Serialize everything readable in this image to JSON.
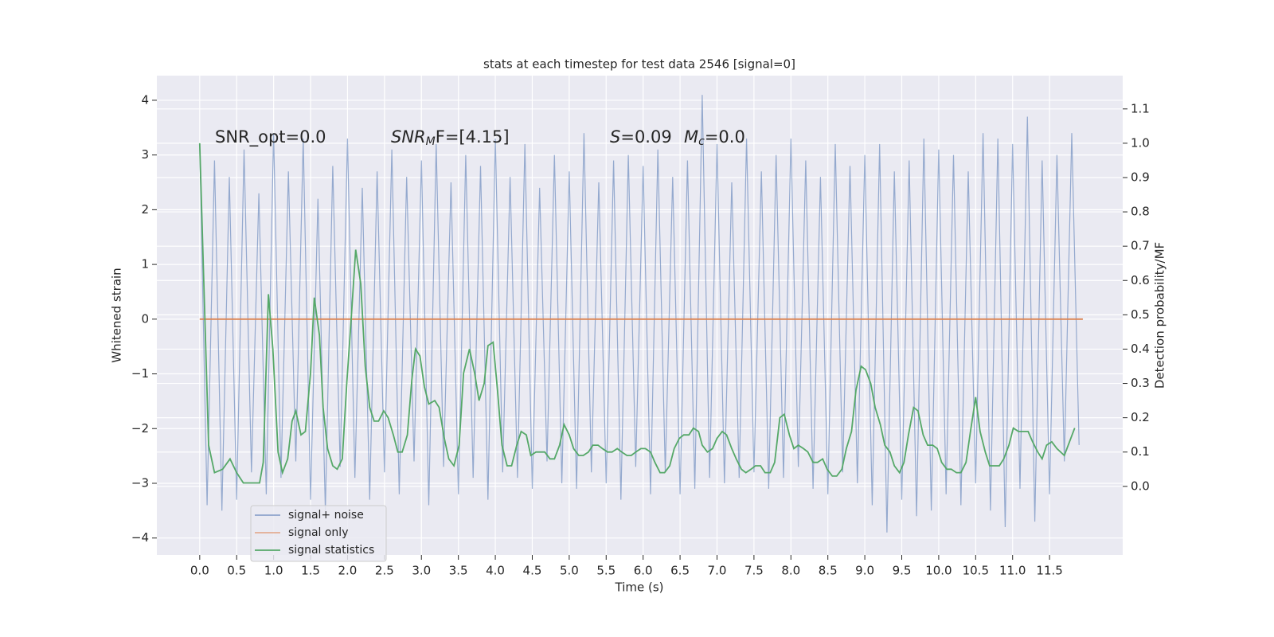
{
  "chart_data": {
    "type": "line",
    "title": "stats at each timestep for test data 2546 [signal=0]",
    "xlabel": "Time (s)",
    "ylabel": "Whitened strain",
    "y2label": "Detection probability/MF",
    "annotations": [
      [
        {
          "text": "SNR_opt=0.0"
        }
      ],
      [
        {
          "text": "SNR",
          "italic": true
        },
        {
          "text": "M",
          "italic": true,
          "sub": true
        },
        {
          "text": "F=[4.15]"
        }
      ],
      [
        {
          "text": "S",
          "italic": true
        },
        {
          "text": "=0.09"
        }
      ],
      [
        {
          "text": "M",
          "italic": true
        },
        {
          "text": "c",
          "italic": true,
          "sub": true
        },
        {
          "text": "=0.0"
        }
      ]
    ],
    "xlim": [
      -0.58,
      12.49
    ],
    "ylim": [
      -4.31,
      4.45
    ],
    "y2lim": [
      -0.2,
      1.197
    ],
    "xticks": [
      {
        "value": 0,
        "label": "0.0"
      },
      {
        "value": 0.5,
        "label": "0.5"
      },
      {
        "value": 1,
        "label": "1.0"
      },
      {
        "value": 1.5,
        "label": "1.5"
      },
      {
        "value": 2,
        "label": "2.0"
      },
      {
        "value": 2.5,
        "label": "2.5"
      },
      {
        "value": 3,
        "label": "3.0"
      },
      {
        "value": 3.5,
        "label": "3.5"
      },
      {
        "value": 4,
        "label": "4.0"
      },
      {
        "value": 4.5,
        "label": "4.5"
      },
      {
        "value": 5,
        "label": "5.0"
      },
      {
        "value": 5.5,
        "label": "5.5"
      },
      {
        "value": 6,
        "label": "6.0"
      },
      {
        "value": 6.5,
        "label": "6.5"
      },
      {
        "value": 7,
        "label": "7.0"
      },
      {
        "value": 7.5,
        "label": "7.5"
      },
      {
        "value": 8,
        "label": "8.0"
      },
      {
        "value": 8.5,
        "label": "8.5"
      },
      {
        "value": 9,
        "label": "9.0"
      },
      {
        "value": 9.5,
        "label": "9.5"
      },
      {
        "value": 10,
        "label": "10.0"
      },
      {
        "value": 10.5,
        "label": "10.5"
      },
      {
        "value": 11,
        "label": "11.0"
      },
      {
        "value": 11.5,
        "label": "11.5"
      }
    ],
    "yticks": [
      {
        "value": -4,
        "label": "−4"
      },
      {
        "value": -3,
        "label": "−3"
      },
      {
        "value": -2,
        "label": "−2"
      },
      {
        "value": -1,
        "label": "−1"
      },
      0,
      1,
      2,
      3,
      4
    ],
    "y2ticks": [
      {
        "value": 0,
        "label": "0.0"
      },
      {
        "value": 0.1,
        "label": "0.1"
      },
      {
        "value": 0.2,
        "label": "0.2"
      },
      {
        "value": 0.3,
        "label": "0.3"
      },
      {
        "value": 0.4,
        "label": "0.4"
      },
      {
        "value": 0.5,
        "label": "0.5"
      },
      {
        "value": 0.6,
        "label": "0.6"
      },
      {
        "value": 0.7,
        "label": "0.7"
      },
      {
        "value": 0.8,
        "label": "0.8"
      },
      {
        "value": 0.9,
        "label": "0.9"
      },
      {
        "value": 1,
        "label": "1.0"
      },
      {
        "value": 1.1,
        "label": "1.1"
      }
    ],
    "grid": true,
    "legend_loc": "lower left",
    "series": [
      {
        "name": "signal+ noise",
        "color": "#4c72b0",
        "axis": "y",
        "x": [
          0.0,
          0.1,
          0.2,
          0.3,
          0.4,
          0.5,
          0.6,
          0.7,
          0.8,
          0.9,
          1.0,
          1.1,
          1.2,
          1.3,
          1.4,
          1.5,
          1.6,
          1.7,
          1.8,
          1.9,
          2.0,
          2.1,
          2.2,
          2.3,
          2.4,
          2.5,
          2.6,
          2.7,
          2.8,
          2.9,
          3.0,
          3.1,
          3.2,
          3.3,
          3.4,
          3.5,
          3.6,
          3.7,
          3.8,
          3.9,
          4.0,
          4.1,
          4.2,
          4.3,
          4.4,
          4.5,
          4.6,
          4.7,
          4.8,
          4.9,
          5.0,
          5.1,
          5.2,
          5.3,
          5.4,
          5.5,
          5.6,
          5.7,
          5.8,
          5.9,
          6.0,
          6.1,
          6.2,
          6.3,
          6.4,
          6.5,
          6.6,
          6.7,
          6.8,
          6.9,
          7.0,
          7.1,
          7.2,
          7.3,
          7.4,
          7.5,
          7.6,
          7.7,
          7.8,
          7.9,
          8.0,
          8.1,
          8.2,
          8.3,
          8.4,
          8.5,
          8.6,
          8.7,
          8.8,
          8.9,
          9.0,
          9.1,
          9.2,
          9.3,
          9.4,
          9.5,
          9.6,
          9.7,
          9.8,
          9.9,
          10.0,
          10.1,
          10.2,
          10.3,
          10.4,
          10.5,
          10.6,
          10.7,
          10.8,
          10.9,
          11.0,
          11.1,
          11.2,
          11.3,
          11.4,
          11.5,
          11.6,
          11.7,
          11.8,
          11.9
        ],
        "values": [
          3.2,
          -3.4,
          2.9,
          -3.5,
          2.6,
          -3.3,
          3.1,
          -2.8,
          2.3,
          -3.2,
          3.4,
          -2.9,
          2.7,
          -2.6,
          3.3,
          -3.3,
          2.2,
          -3.5,
          2.8,
          -2.7,
          3.3,
          -2.9,
          2.4,
          -3.3,
          2.7,
          -2.8,
          3.1,
          -3.2,
          2.6,
          -2.6,
          2.9,
          -3.4,
          3.2,
          -2.7,
          2.5,
          -3.2,
          3.0,
          -2.9,
          2.8,
          -3.3,
          3.3,
          -2.8,
          2.6,
          -2.9,
          3.2,
          -3.1,
          2.4,
          -2.6,
          3.0,
          -3.0,
          2.7,
          -3.1,
          3.4,
          -2.8,
          2.5,
          -3.0,
          2.9,
          -3.3,
          3.0,
          -2.7,
          2.8,
          -3.2,
          3.1,
          -2.8,
          2.6,
          -3.2,
          2.9,
          -3.1,
          4.1,
          -2.9,
          3.2,
          -3.0,
          2.5,
          -2.9,
          3.3,
          -2.8,
          2.7,
          -3.1,
          3.0,
          -2.9,
          3.3,
          -2.7,
          2.9,
          -3.1,
          2.6,
          -3.2,
          3.2,
          -2.8,
          2.8,
          -3.0,
          3.0,
          -3.4,
          3.2,
          -3.9,
          2.7,
          -3.3,
          2.9,
          -3.6,
          3.3,
          -3.5,
          3.1,
          -3.2,
          3.0,
          -3.4,
          2.7,
          -3.0,
          3.4,
          -3.5,
          3.3,
          -3.8,
          3.2,
          -3.1,
          3.7,
          -3.7,
          2.9,
          -3.2,
          3.0,
          -2.6,
          3.4,
          -2.3
        ]
      },
      {
        "name": "signal only",
        "color": "#dd8452",
        "axis": "y",
        "x": [
          0.0,
          11.95
        ],
        "values": [
          0,
          0
        ]
      },
      {
        "name": "signal statistics",
        "color": "#55a868",
        "axis": "y2",
        "x": [
          0,
          0.12,
          0.2,
          0.31,
          0.41,
          0.5,
          0.59,
          0.72,
          0.81,
          0.86,
          0.93,
          0.99,
          1.06,
          1.12,
          1.19,
          1.25,
          1.3,
          1.37,
          1.43,
          1.5,
          1.55,
          1.62,
          1.67,
          1.73,
          1.8,
          1.86,
          1.93,
          1.99,
          2.05,
          2.11,
          2.18,
          2.24,
          2.3,
          2.36,
          2.42,
          2.49,
          2.55,
          2.62,
          2.68,
          2.74,
          2.81,
          2.87,
          2.92,
          2.98,
          3.04,
          3.1,
          3.18,
          3.24,
          3.31,
          3.37,
          3.44,
          3.51,
          3.57,
          3.65,
          3.72,
          3.78,
          3.85,
          3.9,
          3.97,
          4.03,
          4.09,
          4.16,
          4.22,
          4.29,
          4.35,
          4.42,
          4.48,
          4.55,
          4.61,
          4.67,
          4.74,
          4.8,
          4.87,
          4.93,
          5.0,
          5.06,
          5.13,
          5.19,
          5.26,
          5.32,
          5.39,
          5.45,
          5.52,
          5.58,
          5.65,
          5.71,
          5.78,
          5.84,
          5.9,
          5.97,
          6.03,
          6.1,
          6.16,
          6.23,
          6.29,
          6.36,
          6.42,
          6.49,
          6.55,
          6.62,
          6.68,
          6.75,
          6.8,
          6.87,
          6.94,
          7.0,
          7.07,
          7.13,
          7.2,
          7.26,
          7.33,
          7.39,
          7.46,
          7.52,
          7.59,
          7.65,
          7.72,
          7.78,
          7.85,
          7.91,
          7.98,
          8.04,
          8.1,
          8.17,
          8.23,
          8.3,
          8.36,
          8.43,
          8.49,
          8.56,
          8.62,
          8.69,
          8.75,
          8.82,
          8.88,
          8.95,
          9.01,
          9.08,
          9.14,
          9.21,
          9.27,
          9.34,
          9.4,
          9.47,
          9.53,
          9.59,
          9.66,
          9.72,
          9.79,
          9.85,
          9.92,
          9.98,
          10.04,
          10.11,
          10.17,
          10.24,
          10.3,
          10.37,
          10.43,
          10.5,
          10.56,
          10.63,
          10.69,
          10.75,
          10.82,
          10.88,
          10.95,
          11.01,
          11.08,
          11.14,
          11.21,
          11.27,
          11.34,
          11.4,
          11.46,
          11.53,
          11.6,
          11.7,
          11.84
        ],
        "values": [
          1.0,
          0.12,
          0.04,
          0.05,
          0.08,
          0.04,
          0.01,
          0.01,
          0.01,
          0.07,
          0.56,
          0.4,
          0.1,
          0.04,
          0.08,
          0.19,
          0.22,
          0.15,
          0.16,
          0.33,
          0.55,
          0.44,
          0.23,
          0.11,
          0.06,
          0.05,
          0.08,
          0.3,
          0.49,
          0.69,
          0.59,
          0.35,
          0.23,
          0.19,
          0.19,
          0.22,
          0.2,
          0.15,
          0.1,
          0.1,
          0.15,
          0.31,
          0.4,
          0.38,
          0.29,
          0.24,
          0.25,
          0.23,
          0.14,
          0.08,
          0.06,
          0.12,
          0.33,
          0.4,
          0.33,
          0.25,
          0.3,
          0.41,
          0.42,
          0.28,
          0.12,
          0.06,
          0.06,
          0.12,
          0.16,
          0.15,
          0.09,
          0.1,
          0.1,
          0.1,
          0.08,
          0.08,
          0.12,
          0.18,
          0.15,
          0.11,
          0.09,
          0.09,
          0.1,
          0.12,
          0.12,
          0.11,
          0.1,
          0.1,
          0.11,
          0.1,
          0.09,
          0.09,
          0.1,
          0.11,
          0.11,
          0.1,
          0.07,
          0.04,
          0.04,
          0.06,
          0.11,
          0.14,
          0.15,
          0.15,
          0.17,
          0.16,
          0.12,
          0.1,
          0.11,
          0.14,
          0.16,
          0.15,
          0.11,
          0.08,
          0.05,
          0.04,
          0.05,
          0.06,
          0.06,
          0.04,
          0.04,
          0.07,
          0.2,
          0.21,
          0.15,
          0.11,
          0.12,
          0.11,
          0.1,
          0.07,
          0.07,
          0.08,
          0.05,
          0.03,
          0.03,
          0.05,
          0.11,
          0.16,
          0.28,
          0.35,
          0.34,
          0.3,
          0.23,
          0.18,
          0.12,
          0.1,
          0.06,
          0.04,
          0.07,
          0.15,
          0.23,
          0.22,
          0.15,
          0.12,
          0.12,
          0.11,
          0.07,
          0.05,
          0.05,
          0.04,
          0.04,
          0.07,
          0.16,
          0.26,
          0.16,
          0.1,
          0.06,
          0.06,
          0.06,
          0.08,
          0.12,
          0.17,
          0.16,
          0.16,
          0.16,
          0.13,
          0.1,
          0.08,
          0.12,
          0.13,
          0.11,
          0.09,
          0.17
        ]
      }
    ]
  }
}
